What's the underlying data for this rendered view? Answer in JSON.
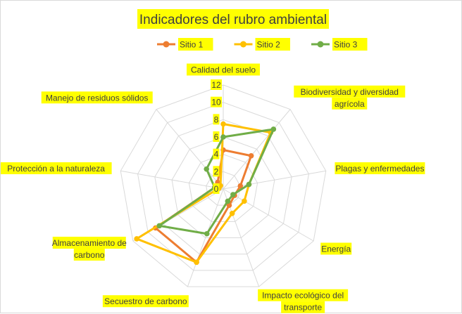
{
  "chart_data": {
    "type": "radar",
    "title": "Indicadores del rubro ambiental",
    "categories": [
      "Calidad del suelo",
      "Biodiversidad y diversidad agrícola",
      "Plagas y enfermedades",
      "Energía",
      "Impacto ecológico del transporte",
      "Secuestro de carbono",
      "Almacenamiento de carbono",
      "Protección a la naturaleza",
      "Manejo de residuos sólidos"
    ],
    "category_lines": [
      [
        "Calidad del suelo"
      ],
      [
        "Biodiversidad y diversidad",
        "agrícola"
      ],
      [
        "Plagas y enfermedades"
      ],
      [
        "Energía"
      ],
      [
        "Impacto ecológico del",
        "transporte"
      ],
      [
        "Secuestro de carbono"
      ],
      [
        "Almacenamiento de",
        "carbono"
      ],
      [
        "Protección a la naturaleza"
      ],
      [
        "Manejo de residuos sólidos"
      ]
    ],
    "radial_ticks": [
      "0",
      "2",
      "4",
      "6",
      "8",
      "10",
      "12"
    ],
    "rlim": [
      0,
      12
    ],
    "legend_position": "top",
    "series": [
      {
        "name": "Sitio 1",
        "color": "#ed7d31",
        "values": [
          4.5,
          5,
          2,
          1.5,
          2,
          9,
          9,
          1,
          1
        ]
      },
      {
        "name": "Sitio 2",
        "color": "#ffc000",
        "values": [
          7.5,
          8.5,
          3,
          2.8,
          3,
          9,
          11.5,
          0.5,
          0.5
        ]
      },
      {
        "name": "Sitio 3",
        "color": "#70ad47",
        "values": [
          6,
          9,
          3,
          1.3,
          1.5,
          5.5,
          8.5,
          1,
          3
        ]
      }
    ]
  }
}
